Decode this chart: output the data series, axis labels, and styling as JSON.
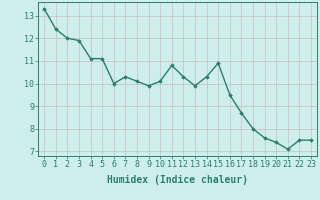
{
  "x": [
    0,
    1,
    2,
    3,
    4,
    5,
    6,
    7,
    8,
    9,
    10,
    11,
    12,
    13,
    14,
    15,
    16,
    17,
    18,
    19,
    20,
    21,
    22,
    23
  ],
  "y": [
    13.3,
    12.4,
    12.0,
    11.9,
    11.1,
    11.1,
    10.0,
    10.3,
    10.1,
    9.9,
    10.1,
    10.8,
    10.3,
    9.9,
    10.3,
    10.9,
    9.5,
    8.7,
    8.0,
    7.6,
    7.4,
    7.1,
    7.5,
    7.5
  ],
  "line_color": "#2e7d6e",
  "marker": "D",
  "marker_size": 1.8,
  "line_width": 1.0,
  "xlabel": "Humidex (Indice chaleur)",
  "xlim": [
    -0.5,
    23.5
  ],
  "ylim": [
    6.8,
    13.6
  ],
  "yticks": [
    7,
    8,
    9,
    10,
    11,
    12,
    13
  ],
  "xticks": [
    0,
    1,
    2,
    3,
    4,
    5,
    6,
    7,
    8,
    9,
    10,
    11,
    12,
    13,
    14,
    15,
    16,
    17,
    18,
    19,
    20,
    21,
    22,
    23
  ],
  "bg_color": "#ceeee9",
  "grid_color": "#c8bebe",
  "axis_color": "#2e7d6e",
  "tick_color": "#2e7d6e",
  "label_color": "#2e7d6e",
  "xlabel_fontsize": 7.0,
  "tick_fontsize": 6.0
}
